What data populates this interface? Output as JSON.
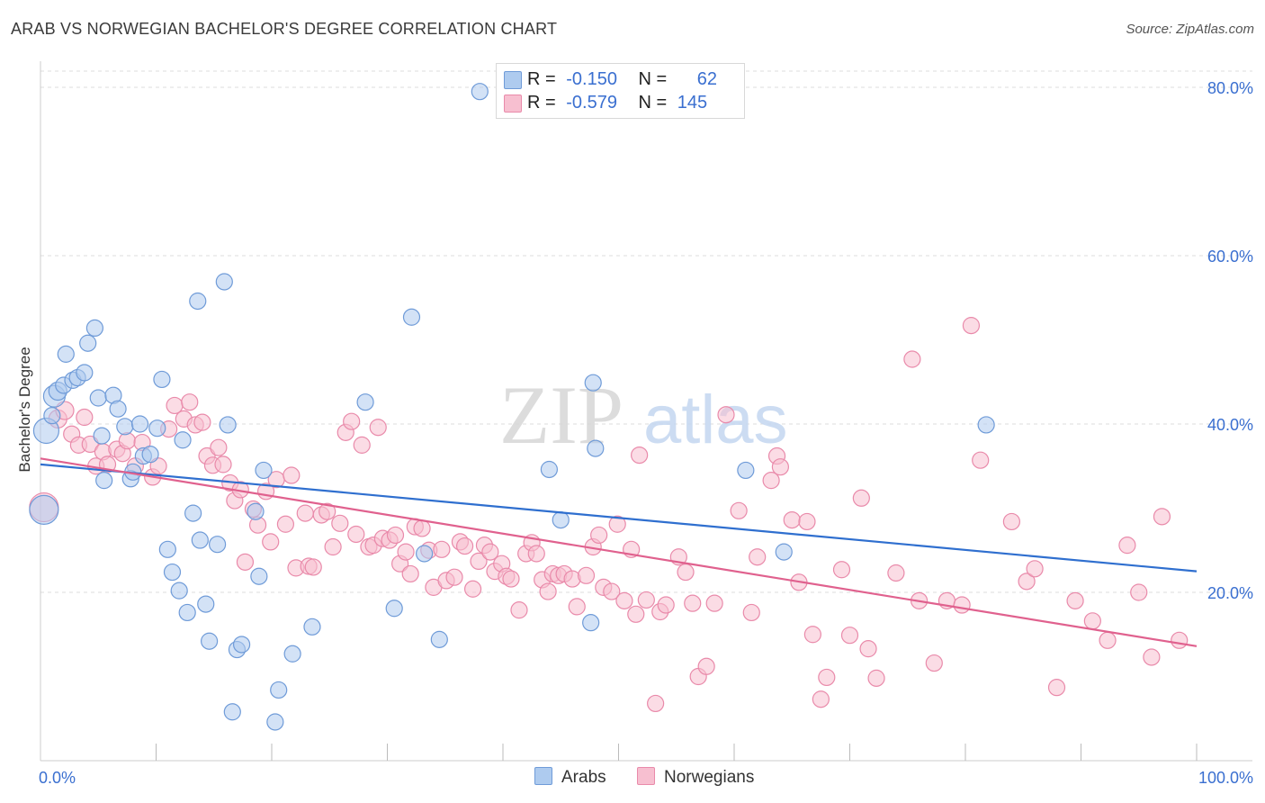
{
  "title": "ARAB VS NORWEGIAN BACHELOR'S DEGREE CORRELATION CHART",
  "source": "Source: ZipAtlas.com",
  "watermark": {
    "zip": "ZIP",
    "atlas": "atlas"
  },
  "colors": {
    "arabs_fill": "#aecbef",
    "arabs_stroke": "#6f9bd8",
    "arabs_line": "#2f6fcf",
    "norwegians_fill": "#f7bfd0",
    "norwegians_stroke": "#e98aaa",
    "norwegians_line": "#e0618e",
    "axis_text": "#3a6fd0",
    "grid": "#dddddd"
  },
  "legend": {
    "rows": [
      {
        "r_label": "R =",
        "r_value": "-0.150",
        "n_label": "N =",
        "n_value": "62"
      },
      {
        "r_label": "R =",
        "r_value": "-0.579",
        "n_label": "N =",
        "n_value": "145"
      }
    ]
  },
  "bottom_legend": {
    "arabs": "Arabs",
    "norwegians": "Norwegians"
  },
  "chart_data": {
    "type": "scatter",
    "title": "ARAB VS NORWEGIAN BACHELOR'S DEGREE CORRELATION CHART",
    "xlabel": "",
    "ylabel": "Bachelor's Degree",
    "xlim": [
      0,
      100
    ],
    "ylim": [
      0,
      80
    ],
    "x_tick_labels": [
      "0.0%",
      "100.0%"
    ],
    "y_ticks": [
      20,
      40,
      60,
      80
    ],
    "y_tick_labels": [
      "20.0%",
      "40.0%",
      "60.0%",
      "80.0%"
    ],
    "grid": true,
    "series": [
      {
        "name": "Arabs",
        "trend": {
          "x": [
            0,
            100
          ],
          "y": [
            35.2,
            22.5
          ]
        },
        "points": [
          [
            0.3,
            29.8,
            16
          ],
          [
            0.5,
            39.2,
            14
          ],
          [
            1.2,
            43.3,
            12
          ],
          [
            1.5,
            43.9,
            10
          ],
          [
            2.2,
            48.3,
            9
          ],
          [
            2.0,
            44.6,
            9
          ],
          [
            2.8,
            45.2,
            9
          ],
          [
            3.2,
            45.5,
            9
          ],
          [
            3.8,
            46.1,
            9
          ],
          [
            4.1,
            49.6,
            9
          ],
          [
            4.7,
            51.4,
            9
          ],
          [
            5.0,
            43.1,
            9
          ],
          [
            5.3,
            38.6,
            9
          ],
          [
            5.5,
            33.3,
            9
          ],
          [
            6.3,
            43.4,
            9
          ],
          [
            6.7,
            41.8,
            9
          ],
          [
            7.3,
            39.7,
            9
          ],
          [
            7.8,
            33.5,
            9
          ],
          [
            8.0,
            34.3,
            9
          ],
          [
            8.6,
            40.0,
            9
          ],
          [
            8.9,
            36.2,
            9
          ],
          [
            9.5,
            36.4,
            9
          ],
          [
            10.1,
            39.5,
            9
          ],
          [
            10.5,
            45.3,
            9
          ],
          [
            11.0,
            25.1,
            9
          ],
          [
            11.4,
            22.4,
            9
          ],
          [
            12.0,
            20.2,
            9
          ],
          [
            12.3,
            38.1,
            9
          ],
          [
            12.7,
            17.6,
            9
          ],
          [
            13.2,
            29.4,
            9
          ],
          [
            13.6,
            54.6,
            9
          ],
          [
            13.8,
            26.2,
            9
          ],
          [
            14.3,
            18.6,
            9
          ],
          [
            14.6,
            14.2,
            9
          ],
          [
            15.3,
            25.7,
            9
          ],
          [
            15.9,
            56.9,
            9
          ],
          [
            16.2,
            39.9,
            9
          ],
          [
            16.6,
            5.8,
            9
          ],
          [
            17.0,
            13.2,
            9
          ],
          [
            17.4,
            13.8,
            9
          ],
          [
            18.6,
            29.6,
            9
          ],
          [
            18.9,
            21.9,
            9
          ],
          [
            19.3,
            34.5,
            9
          ],
          [
            20.3,
            4.6,
            9
          ],
          [
            20.6,
            8.4,
            9
          ],
          [
            21.8,
            12.7,
            9
          ],
          [
            23.5,
            15.9,
            9
          ],
          [
            28.1,
            42.6,
            9
          ],
          [
            30.6,
            18.1,
            9
          ],
          [
            32.1,
            52.7,
            9
          ],
          [
            33.2,
            24.6,
            9
          ],
          [
            34.5,
            14.4,
            9
          ],
          [
            38.0,
            79.5,
            9
          ],
          [
            44.0,
            34.6,
            9
          ],
          [
            45.0,
            28.6,
            9
          ],
          [
            47.6,
            16.4,
            9
          ],
          [
            47.8,
            44.9,
            9
          ],
          [
            48.0,
            37.1,
            9
          ],
          [
            61.0,
            34.5,
            9
          ],
          [
            64.3,
            24.8,
            9
          ],
          [
            81.8,
            39.9,
            9
          ],
          [
            1.0,
            41.0,
            9
          ]
        ]
      },
      {
        "name": "Norwegians",
        "trend": {
          "x": [
            0,
            100
          ],
          "y": [
            35.9,
            13.6
          ]
        },
        "points": [
          [
            0.3,
            30.1,
            16
          ],
          [
            1.5,
            40.6,
            10
          ],
          [
            2.1,
            41.6,
            10
          ],
          [
            2.7,
            38.8,
            9
          ],
          [
            3.3,
            37.5,
            9
          ],
          [
            3.8,
            40.8,
            9
          ],
          [
            4.3,
            37.6,
            9
          ],
          [
            4.8,
            35.0,
            9
          ],
          [
            5.4,
            36.7,
            9
          ],
          [
            5.8,
            35.2,
            9
          ],
          [
            6.6,
            37.0,
            9
          ],
          [
            7.1,
            36.5,
            9
          ],
          [
            7.5,
            38.0,
            9
          ],
          [
            8.2,
            35.0,
            9
          ],
          [
            8.8,
            37.8,
            9
          ],
          [
            9.7,
            33.7,
            9
          ],
          [
            10.2,
            35.0,
            9
          ],
          [
            11.1,
            39.4,
            9
          ],
          [
            11.6,
            42.2,
            9
          ],
          [
            12.4,
            40.6,
            9
          ],
          [
            12.9,
            42.6,
            9
          ],
          [
            13.4,
            39.9,
            9
          ],
          [
            14.0,
            40.2,
            9
          ],
          [
            14.4,
            36.2,
            9
          ],
          [
            14.9,
            35.1,
            9
          ],
          [
            15.4,
            37.2,
            9
          ],
          [
            15.8,
            35.2,
            9
          ],
          [
            16.4,
            33.0,
            9
          ],
          [
            16.8,
            30.9,
            9
          ],
          [
            17.3,
            32.2,
            9
          ],
          [
            17.7,
            23.6,
            9
          ],
          [
            18.4,
            29.9,
            9
          ],
          [
            18.8,
            28.0,
            9
          ],
          [
            19.5,
            32.0,
            9
          ],
          [
            19.9,
            26.0,
            9
          ],
          [
            20.4,
            33.4,
            9
          ],
          [
            21.2,
            28.1,
            9
          ],
          [
            21.7,
            33.9,
            9
          ],
          [
            22.1,
            22.9,
            9
          ],
          [
            22.9,
            29.4,
            9
          ],
          [
            23.2,
            23.1,
            9
          ],
          [
            23.6,
            23.0,
            9
          ],
          [
            24.3,
            29.2,
            9
          ],
          [
            24.8,
            29.6,
            9
          ],
          [
            25.3,
            25.4,
            9
          ],
          [
            25.9,
            28.2,
            9
          ],
          [
            26.4,
            39.0,
            9
          ],
          [
            26.9,
            40.3,
            9
          ],
          [
            27.3,
            26.9,
            9
          ],
          [
            27.8,
            37.5,
            9
          ],
          [
            28.4,
            25.4,
            9
          ],
          [
            28.8,
            25.6,
            9
          ],
          [
            29.2,
            39.6,
            9
          ],
          [
            29.6,
            26.4,
            9
          ],
          [
            30.2,
            26.2,
            9
          ],
          [
            30.7,
            26.8,
            9
          ],
          [
            31.1,
            23.4,
            9
          ],
          [
            31.6,
            24.8,
            9
          ],
          [
            32.0,
            22.2,
            9
          ],
          [
            32.4,
            27.8,
            9
          ],
          [
            33.0,
            27.6,
            9
          ],
          [
            33.6,
            25.0,
            9
          ],
          [
            34.0,
            20.6,
            9
          ],
          [
            34.7,
            25.1,
            9
          ],
          [
            35.1,
            21.4,
            9
          ],
          [
            35.8,
            21.8,
            9
          ],
          [
            36.3,
            26.0,
            9
          ],
          [
            36.7,
            25.5,
            9
          ],
          [
            37.4,
            20.4,
            9
          ],
          [
            37.9,
            23.7,
            9
          ],
          [
            38.4,
            25.6,
            9
          ],
          [
            38.9,
            24.8,
            9
          ],
          [
            39.3,
            22.5,
            9
          ],
          [
            39.9,
            23.4,
            9
          ],
          [
            40.3,
            21.9,
            9
          ],
          [
            40.7,
            21.6,
            9
          ],
          [
            41.4,
            17.9,
            9
          ],
          [
            42.0,
            24.6,
            9
          ],
          [
            42.5,
            25.9,
            9
          ],
          [
            42.9,
            24.6,
            9
          ],
          [
            43.4,
            21.5,
            9
          ],
          [
            43.9,
            20.1,
            9
          ],
          [
            44.3,
            22.2,
            9
          ],
          [
            44.8,
            22.0,
            9
          ],
          [
            45.3,
            22.2,
            9
          ],
          [
            46.0,
            21.6,
            9
          ],
          [
            46.4,
            18.3,
            9
          ],
          [
            47.2,
            22.0,
            9
          ],
          [
            47.8,
            25.4,
            9
          ],
          [
            48.3,
            26.8,
            9
          ],
          [
            48.7,
            20.6,
            9
          ],
          [
            49.4,
            20.1,
            9
          ],
          [
            49.9,
            28.1,
            9
          ],
          [
            50.5,
            19.0,
            9
          ],
          [
            51.1,
            25.1,
            9
          ],
          [
            51.5,
            17.4,
            9
          ],
          [
            51.8,
            36.3,
            9
          ],
          [
            52.4,
            19.1,
            9
          ],
          [
            53.2,
            6.8,
            9
          ],
          [
            53.6,
            17.7,
            9
          ],
          [
            54.1,
            18.5,
            9
          ],
          [
            55.2,
            24.2,
            9
          ],
          [
            55.8,
            22.4,
            9
          ],
          [
            56.4,
            18.7,
            9
          ],
          [
            56.9,
            10.0,
            9
          ],
          [
            57.6,
            11.2,
            9
          ],
          [
            58.3,
            18.7,
            9
          ],
          [
            59.3,
            41.1,
            9
          ],
          [
            60.4,
            29.7,
            9
          ],
          [
            61.5,
            17.6,
            9
          ],
          [
            62.0,
            24.2,
            9
          ],
          [
            63.2,
            33.3,
            9
          ],
          [
            63.7,
            36.2,
            9
          ],
          [
            64.0,
            34.9,
            9
          ],
          [
            65.0,
            28.6,
            9
          ],
          [
            65.6,
            21.2,
            9
          ],
          [
            66.3,
            28.4,
            9
          ],
          [
            66.8,
            15.0,
            9
          ],
          [
            67.5,
            7.3,
            9
          ],
          [
            68.0,
            9.9,
            9
          ],
          [
            69.3,
            22.7,
            9
          ],
          [
            70.0,
            14.9,
            9
          ],
          [
            71.0,
            31.2,
            9
          ],
          [
            71.6,
            13.3,
            9
          ],
          [
            72.3,
            9.8,
            9
          ],
          [
            74.0,
            22.3,
            9
          ],
          [
            75.4,
            47.7,
            9
          ],
          [
            76.0,
            19.0,
            9
          ],
          [
            77.3,
            11.6,
            9
          ],
          [
            78.4,
            19.0,
            9
          ],
          [
            79.7,
            18.5,
            9
          ],
          [
            80.5,
            51.7,
            9
          ],
          [
            81.3,
            35.7,
            9
          ],
          [
            84.0,
            28.4,
            9
          ],
          [
            85.3,
            21.3,
            9
          ],
          [
            86.0,
            22.8,
            9
          ],
          [
            87.9,
            8.7,
            9
          ],
          [
            89.5,
            19.0,
            9
          ],
          [
            91.0,
            16.6,
            9
          ],
          [
            92.3,
            14.3,
            9
          ],
          [
            94.0,
            25.6,
            9
          ],
          [
            95.0,
            20.0,
            9
          ],
          [
            96.1,
            12.3,
            9
          ],
          [
            97.0,
            29.0,
            9
          ],
          [
            98.5,
            14.3,
            9
          ]
        ]
      }
    ]
  }
}
